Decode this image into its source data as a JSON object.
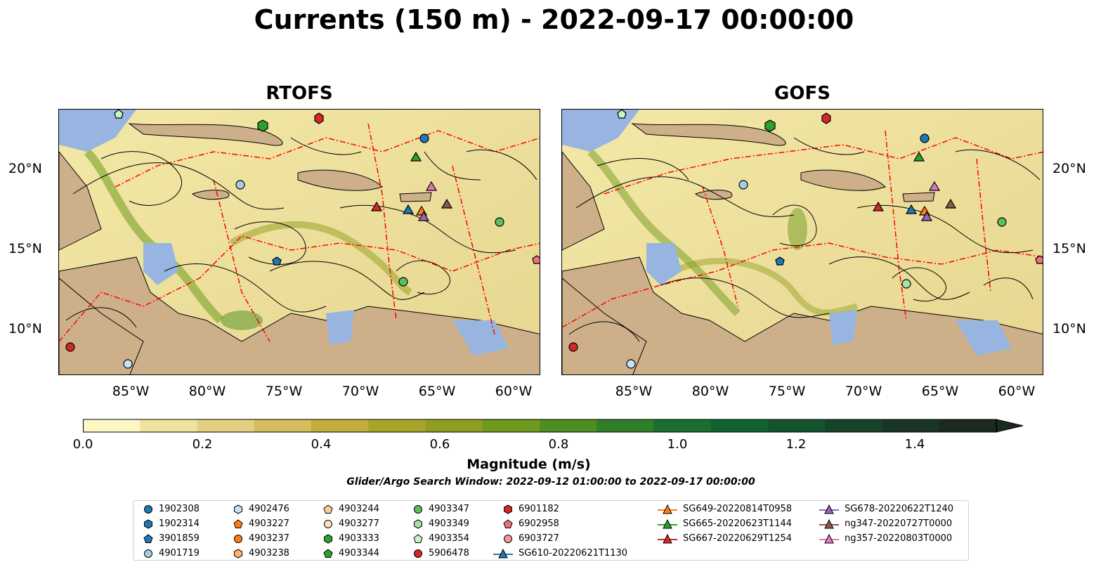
{
  "title": "Currents (150 m) - 2022-09-17 00:00:00",
  "panels": [
    {
      "title": "RTOFS"
    },
    {
      "title": "GOFS"
    }
  ],
  "lat_labels": [
    "20°N",
    "15°N",
    "10°N"
  ],
  "lon_labels": [
    "85°W",
    "80°W",
    "75°W",
    "70°W",
    "65°W",
    "60°W"
  ],
  "colorbar": {
    "label": "Magnitude (m/s)",
    "ticks": [
      "0.0",
      "0.2",
      "0.4",
      "0.6",
      "0.8",
      "1.0",
      "1.2",
      "1.4"
    ],
    "range": [
      0.0,
      1.5
    ],
    "colors": [
      "#fdf7c4",
      "#f0e3a0",
      "#e3cf80",
      "#d4bd5c",
      "#c2ad3c",
      "#a8a42a",
      "#8e9e1f",
      "#6f9a1e",
      "#4e8d22",
      "#2f7e28",
      "#1a6e2f",
      "#126131",
      "#13532e",
      "#17432a",
      "#1a3524",
      "#1c2a1d"
    ]
  },
  "subtitle": "Glider/Argo Search Window: 2022-09-12 01:00:00 to 2022-09-17 00:00:00",
  "map_colors": {
    "land": "#cdb08a",
    "shelf": "#97b5e0",
    "front": "#ff0000",
    "streamline": "#000000"
  },
  "legend": [
    {
      "label": "1902308",
      "marker": "circle",
      "color": "#1f77b4"
    },
    {
      "label": "1902314",
      "marker": "hexagon",
      "color": "#1f77b4"
    },
    {
      "label": "3901859",
      "marker": "pentagon",
      "color": "#1f77b4"
    },
    {
      "label": "4901719",
      "marker": "circle",
      "color": "#a6cee3"
    },
    {
      "label": "4902476",
      "marker": "hexagon",
      "color": "#c6e2f5"
    },
    {
      "label": "4903227",
      "marker": "pentagon",
      "color": "#ff7f0e"
    },
    {
      "label": "4903237",
      "marker": "circle",
      "color": "#ff7f0e"
    },
    {
      "label": "4903238",
      "marker": "hexagon",
      "color": "#ffb366"
    },
    {
      "label": "4903244",
      "marker": "pentagon",
      "color": "#ffcc99"
    },
    {
      "label": "4903277",
      "marker": "circle",
      "color": "#ffe0c2"
    },
    {
      "label": "4903333",
      "marker": "hexagon",
      "color": "#2ca02c"
    },
    {
      "label": "4903344",
      "marker": "pentagon",
      "color": "#2ca02c"
    },
    {
      "label": "4903347",
      "marker": "circle",
      "color": "#5cbf5c"
    },
    {
      "label": "4903349",
      "marker": "hexagon",
      "color": "#a6e3a6"
    },
    {
      "label": "4903354",
      "marker": "pentagon",
      "color": "#c8f5c8"
    },
    {
      "label": "5906478",
      "marker": "circle",
      "color": "#d62728"
    },
    {
      "label": "6901182",
      "marker": "hexagon",
      "color": "#d62728"
    },
    {
      "label": "6902958",
      "marker": "pentagon",
      "color": "#e8737a"
    },
    {
      "label": "6903727",
      "marker": "circle",
      "color": "#f29b9b"
    },
    {
      "label": "SG610-20220621T1130",
      "marker": "triangle-line",
      "color": "#1f77b4"
    },
    {
      "label": "SG649-20220814T0958",
      "marker": "triangle-line",
      "color": "#ff7f0e"
    },
    {
      "label": "SG665-20220623T1144",
      "marker": "triangle-line",
      "color": "#2ca02c"
    },
    {
      "label": "SG667-20220629T1254",
      "marker": "triangle-line",
      "color": "#d62728"
    },
    {
      "label": "SG678-20220622T1240",
      "marker": "triangle-line",
      "color": "#9467bd"
    },
    {
      "label": "ng347-20220727T0000",
      "marker": "triangle-line",
      "color": "#8c564b"
    },
    {
      "label": "ng357-20220803T0000",
      "marker": "triangle-line",
      "color": "#e377c2"
    }
  ]
}
